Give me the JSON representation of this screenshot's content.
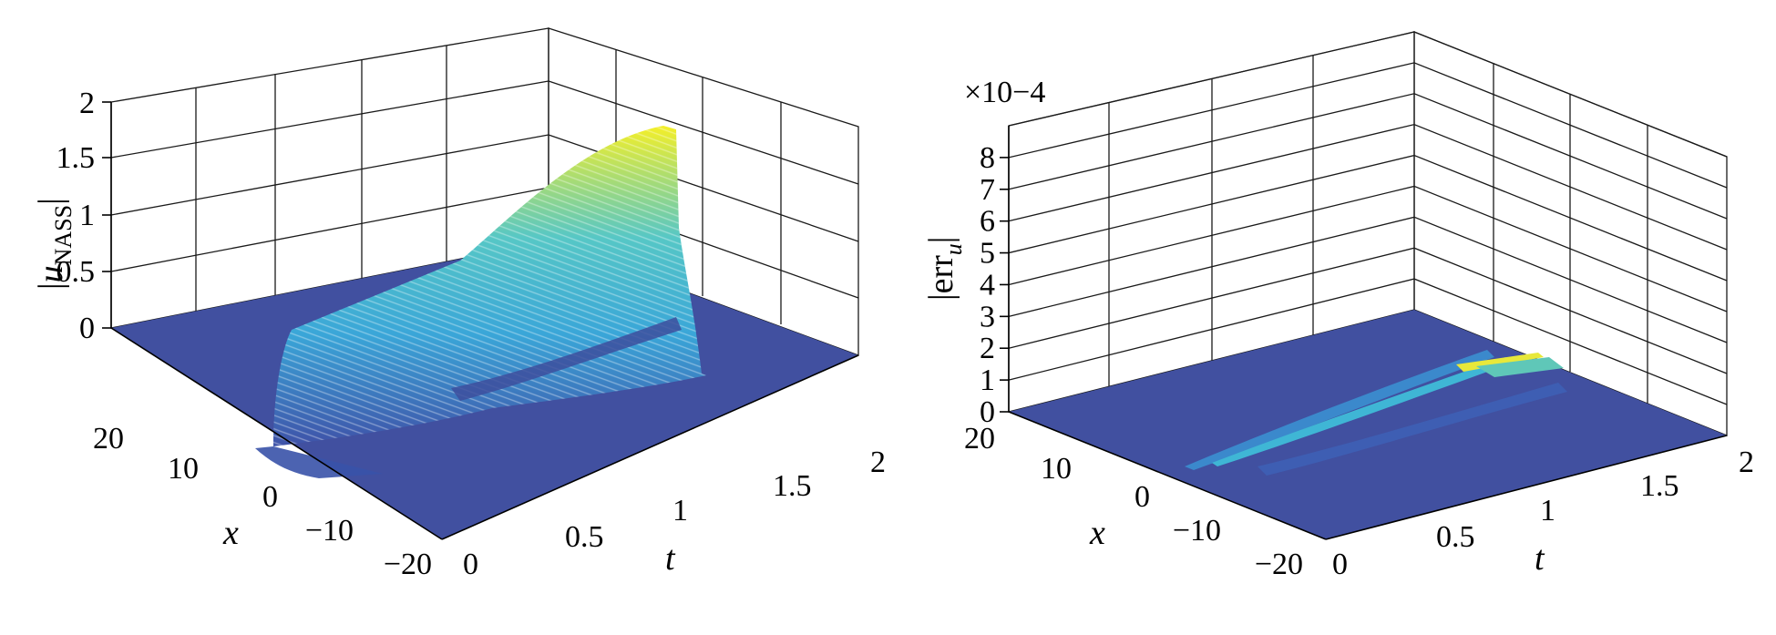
{
  "chart_data": [
    {
      "type": "surface",
      "zlabel": "|u_NASS|",
      "xlabel": "t",
      "ylabel": "x",
      "xlim": [
        0,
        2
      ],
      "ylim": [
        -20,
        20
      ],
      "zlim": [
        0,
        2
      ],
      "t_ticks": [
        "0",
        "0.5",
        "1",
        "1.5",
        "2"
      ],
      "x_ticks": [
        "20",
        "10",
        "0",
        "−10",
        "−20"
      ],
      "z_ticks": [
        "0",
        "0.5",
        "1",
        "1.5",
        "2"
      ],
      "grid": true,
      "colormap": "parula",
      "surface": {
        "description": "single soliton ridge",
        "t_values": [
          0,
          0.25,
          0.5,
          0.75,
          1.0,
          1.25,
          1.5,
          1.75,
          2.0
        ],
        "peak_amplitude": [
          0.7,
          0.8,
          0.9,
          1.05,
          1.2,
          1.4,
          1.6,
          1.8,
          2.0
        ],
        "peak_x": [
          0,
          0,
          0,
          0,
          0,
          0,
          0,
          0,
          0
        ]
      }
    },
    {
      "type": "surface",
      "zlabel": "|err_u|",
      "xlabel": "t",
      "ylabel": "x",
      "exponent": "×10−4",
      "xlim": [
        0,
        2
      ],
      "ylim": [
        -20,
        20
      ],
      "zlim": [
        0,
        9
      ],
      "t_ticks": [
        "0",
        "0.5",
        "1",
        "1.5",
        "2"
      ],
      "x_ticks": [
        "20",
        "10",
        "0",
        "−10",
        "−20"
      ],
      "z_ticks": [
        "0",
        "1",
        "2",
        "3",
        "4",
        "5",
        "6",
        "7",
        "8"
      ],
      "grid": true,
      "colormap": "parula",
      "surface": {
        "description": "error streaks along soliton path",
        "t_values": [
          0,
          0.25,
          0.5,
          0.75,
          1.0,
          1.25,
          1.5,
          1.75,
          2.0
        ],
        "peak_error": [
          0,
          0.1,
          0.2,
          0.3,
          0.4,
          0.6,
          0.8,
          1.0,
          1.2
        ]
      }
    }
  ],
  "colors": {
    "floor": "#4150a0",
    "parula_low": "#3e4fa3",
    "parula_mid": "#3bb8d6",
    "parula_high": "#f4f21c"
  }
}
